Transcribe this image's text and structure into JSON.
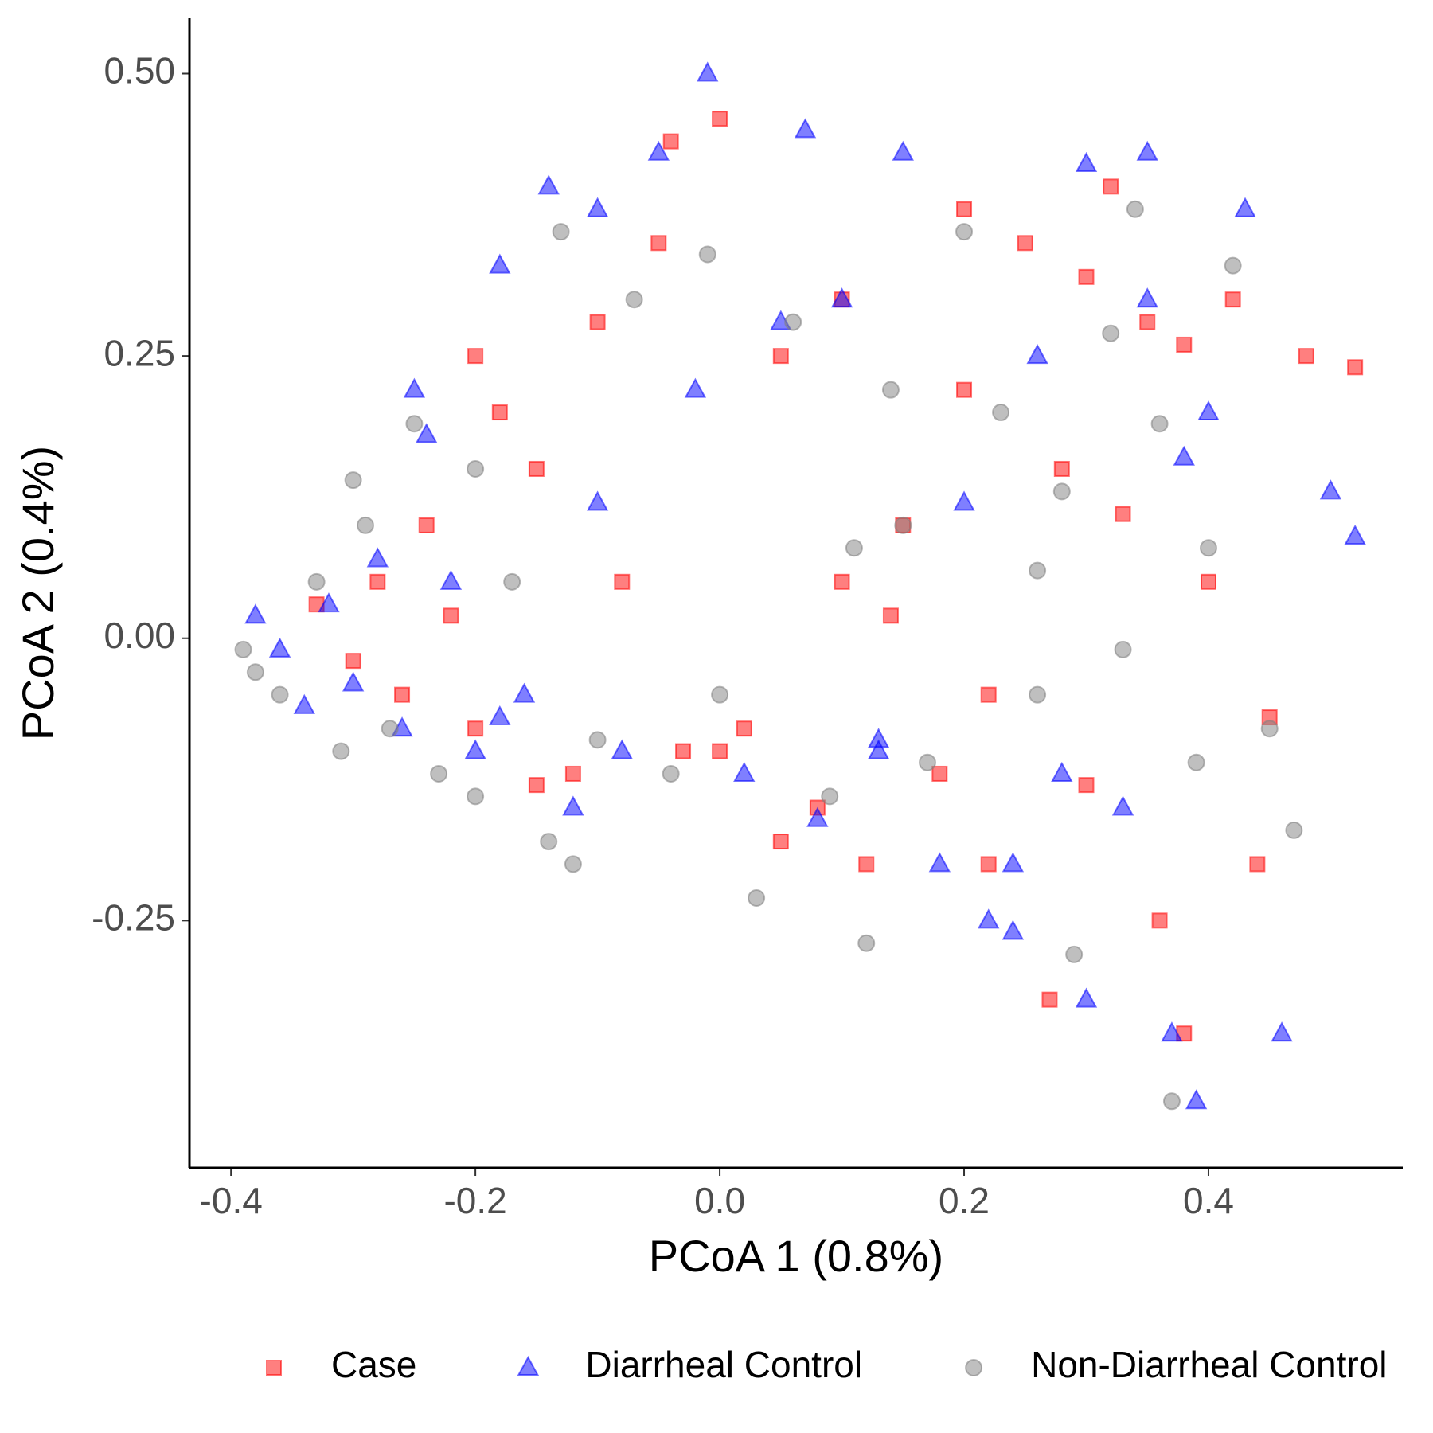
{
  "chart_data": {
    "type": "scatter",
    "x_label": "PCoA 1 (0.8%)",
    "y_label": "PCoA 2 (0.4%)",
    "xlim": [
      -0.434,
      0.559
    ],
    "ylim": [
      -0.469,
      0.549
    ],
    "xticks": [
      -0.4,
      -0.2,
      {
        "value": 0,
        "label": "0.0"
      },
      0.2,
      0.4
    ],
    "yticks": [
      -0.25,
      {
        "value": 0,
        "label": "0.00"
      },
      0.25,
      {
        "value": 0.5,
        "label": "0.50"
      }
    ],
    "grid": false,
    "legend_position": "bottom",
    "series": [
      {
        "name": "Case",
        "color": "#ff0000",
        "marker": "square",
        "x": [
          -0.33,
          -0.3,
          -0.28,
          -0.26,
          -0.24,
          -0.22,
          -0.2,
          -0.18,
          -0.15,
          -0.12,
          -0.1,
          -0.08,
          -0.05,
          -0.03,
          0.0,
          0.02,
          0.05,
          0.08,
          0.1,
          0.12,
          0.15,
          0.18,
          0.2,
          0.22,
          0.25,
          0.28,
          0.3,
          0.32,
          0.35,
          0.38,
          0.4,
          0.42,
          0.45,
          0.48,
          0.52,
          -0.04,
          0.0,
          0.14,
          0.3,
          0.38,
          0.22,
          0.1,
          -0.2,
          -0.15,
          0.36,
          0.27,
          0.33,
          0.44,
          0.2,
          0.05
        ],
        "y": [
          0.03,
          -0.02,
          0.05,
          -0.05,
          0.1,
          0.02,
          -0.08,
          0.2,
          0.15,
          -0.12,
          0.28,
          0.05,
          0.35,
          -0.1,
          0.46,
          -0.08,
          0.25,
          -0.15,
          0.3,
          -0.2,
          0.1,
          -0.12,
          0.22,
          -0.05,
          0.35,
          0.15,
          -0.13,
          0.4,
          0.28,
          -0.35,
          0.05,
          0.3,
          -0.07,
          0.25,
          0.24,
          0.44,
          -0.1,
          0.02,
          0.32,
          0.26,
          -0.2,
          0.05,
          0.25,
          -0.13,
          -0.25,
          -0.32,
          0.11,
          -0.2,
          0.38,
          -0.18
        ]
      },
      {
        "name": "Diarrheal Control",
        "color": "#0000ff",
        "marker": "triangle",
        "x": [
          -0.38,
          -0.36,
          -0.34,
          -0.32,
          -0.3,
          -0.28,
          -0.26,
          -0.24,
          -0.22,
          -0.2,
          -0.18,
          -0.16,
          -0.14,
          -0.12,
          -0.1,
          -0.08,
          -0.05,
          -0.02,
          -0.01,
          0.02,
          0.05,
          0.08,
          0.1,
          0.13,
          0.15,
          0.18,
          0.2,
          0.22,
          0.24,
          0.26,
          0.28,
          0.3,
          0.33,
          0.35,
          0.37,
          0.39,
          0.4,
          0.43,
          0.46,
          0.5,
          0.52,
          -0.18,
          -0.1,
          0.07,
          0.35,
          0.3,
          -0.25,
          0.13,
          0.24,
          0.38
        ],
        "y": [
          0.02,
          -0.01,
          -0.06,
          0.03,
          -0.04,
          0.07,
          -0.08,
          0.18,
          0.05,
          -0.1,
          0.33,
          -0.05,
          0.4,
          -0.15,
          0.38,
          -0.1,
          0.43,
          0.22,
          0.5,
          -0.12,
          0.28,
          -0.16,
          0.3,
          -0.1,
          0.43,
          -0.2,
          0.12,
          -0.25,
          -0.26,
          0.25,
          -0.12,
          0.42,
          -0.15,
          0.43,
          -0.35,
          -0.41,
          0.2,
          0.38,
          -0.35,
          0.13,
          0.09,
          -0.07,
          0.12,
          0.45,
          0.3,
          -0.32,
          0.22,
          -0.09,
          -0.2,
          0.16
        ]
      },
      {
        "name": "Non-Diarrheal Control",
        "color": "#808080",
        "marker": "circle",
        "x": [
          -0.39,
          -0.38,
          -0.36,
          -0.33,
          -0.31,
          -0.29,
          -0.27,
          -0.25,
          -0.23,
          -0.2,
          -0.17,
          -0.14,
          -0.13,
          -0.1,
          -0.07,
          -0.04,
          -0.01,
          0.03,
          0.06,
          0.09,
          0.11,
          0.14,
          0.17,
          0.2,
          0.23,
          0.26,
          0.29,
          0.32,
          0.34,
          0.37,
          0.4,
          0.42,
          0.45,
          0.47,
          -0.2,
          -0.12,
          0.0,
          0.12,
          0.26,
          0.36,
          0.39,
          0.15,
          -0.3,
          0.28,
          0.33
        ],
        "y": [
          -0.01,
          -0.03,
          -0.05,
          0.05,
          -0.1,
          0.1,
          -0.08,
          0.19,
          -0.12,
          -0.14,
          0.05,
          -0.18,
          0.36,
          -0.09,
          0.3,
          -0.12,
          0.34,
          -0.23,
          0.28,
          -0.14,
          0.08,
          0.22,
          -0.11,
          0.36,
          0.2,
          -0.05,
          -0.28,
          0.27,
          0.38,
          -0.41,
          0.08,
          0.33,
          -0.08,
          -0.17,
          0.15,
          -0.2,
          -0.05,
          -0.27,
          0.06,
          0.19,
          -0.11,
          0.1,
          0.14,
          0.13,
          -0.01
        ]
      }
    ]
  }
}
